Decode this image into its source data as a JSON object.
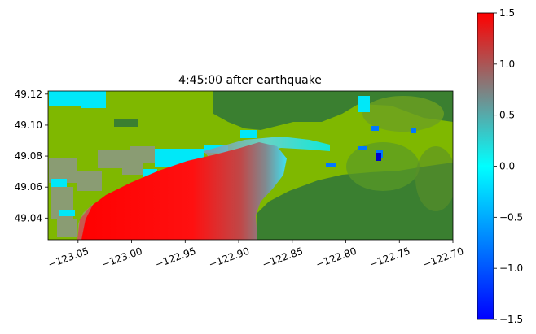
{
  "chart_data": {
    "type": "heatmap",
    "title": "4:45:00 after earthquake",
    "xlabel": "",
    "ylabel": "",
    "xlim": [
      -123.078,
      -122.7
    ],
    "ylim": [
      49.026,
      49.122
    ],
    "x_ticks": [
      -123.05,
      -123.0,
      -122.95,
      -122.9,
      -122.85,
      -122.8,
      -122.75,
      -122.7
    ],
    "x_tick_labels": [
      "−123.05",
      "−123.00",
      "−122.95",
      "−122.90",
      "−122.85",
      "−122.80",
      "−122.75",
      "−122.70"
    ],
    "y_ticks": [
      49.04,
      49.06,
      49.08,
      49.1,
      49.12
    ],
    "y_tick_labels": [
      "49.04",
      "49.06",
      "49.08",
      "49.10",
      "49.12"
    ],
    "x_tick_rotation_deg": -20,
    "grid": false,
    "colorbar": {
      "range": [
        -1.5,
        1.5
      ],
      "ticks": [
        -1.5,
        -1.0,
        -0.5,
        0.0,
        0.5,
        1.0,
        1.5
      ],
      "tick_labels": [
        "−1.5",
        "−1.0",
        "−0.5",
        "0.0",
        "0.5",
        "1.0",
        "1.5"
      ],
      "stops": [
        "#0000ff",
        "#0080ff",
        "#00ffff",
        "#808080",
        "#ff0000"
      ],
      "placement": "right"
    },
    "colors": {
      "dry_land": "#3a7f30",
      "low_land": "#7fb800",
      "flood_high": "#ff0000",
      "flood_mid": "#808080",
      "flood_low": "#00e5ff",
      "flood_neg": "#0072ff"
    }
  }
}
